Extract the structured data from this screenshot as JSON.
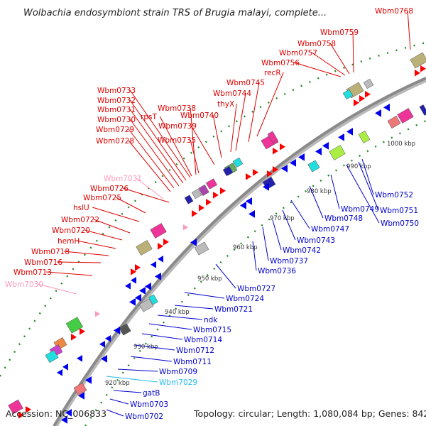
{
  "title": "Wolbachia endosymbiont strain TRS of Brugia malayi, complete...",
  "footer": {
    "accession": "Accession: NC_006833",
    "summary": "Topology: circular; Length: 1,080,084 bp; Genes: 842"
  },
  "colors": {
    "forward_label": "#dd0000",
    "reverse_label": "#0000cc",
    "rna_forward_label": "#ff99bb",
    "rna_reverse_label": "#22bbee",
    "backbone": "#888888",
    "forward_arrow": "#ff0000",
    "reverse_arrow": "#0000ee"
  },
  "ticks": [
    "920 kbp",
    "930 kbp",
    "940 kbp",
    "950 kbp",
    "960 kbp",
    "970 kbp",
    "980 kbp",
    "990 kbp",
    "1000 kbp"
  ],
  "forward_labels": [
    "Wbm7030",
    "Wbm0713",
    "Wbm0716",
    "Wbm0718",
    "hemH",
    "Wbm0720",
    "Wbm0722",
    "hslU",
    "Wbm0725",
    "Wbm0726",
    "Wbm7031",
    "Wbm0728",
    "Wbm0729",
    "Wbm0730",
    "Wbm0731",
    "Wbm0732",
    "Wbm0733",
    "rpsT",
    "Wbm0738",
    "Wbm0735",
    "Wbm0739",
    "Wbm0740",
    "thyX",
    "Wbm0744",
    "Wbm0745",
    "recR",
    "Wbm0756",
    "Wbm0757",
    "Wbm0758",
    "Wbm0759",
    "Wbm0768"
  ],
  "reverse_labels": [
    "Wbm0702",
    "Wbm0703",
    "gatB",
    "Wbm7029",
    "Wbm0709",
    "Wbm0711",
    "Wbm0712",
    "Wbm0714",
    "Wbm0715",
    "ndk",
    "Wbm0721",
    "Wbm0724",
    "Wbm0727",
    "Wbm0736",
    "Wbm0737",
    "Wbm0742",
    "Wbm0743",
    "Wbm0747",
    "Wbm0748",
    "Wbm0749",
    "Wbm0750",
    "Wbm0751",
    "Wbm0752"
  ]
}
